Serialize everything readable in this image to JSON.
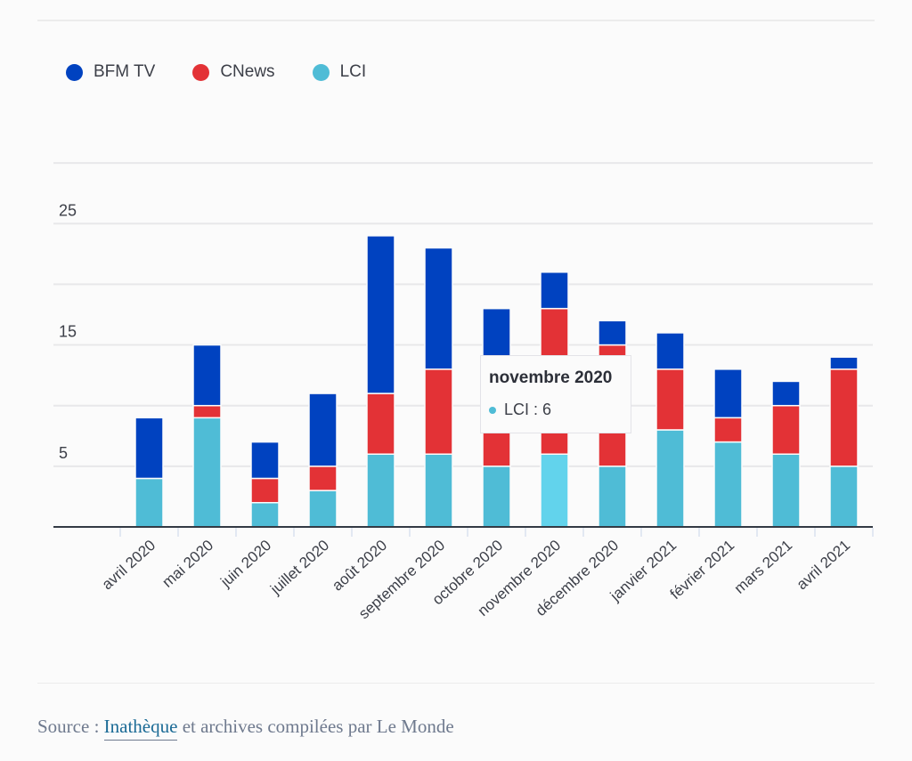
{
  "chart_data": {
    "type": "bar",
    "stacked": true,
    "title": "",
    "xlabel": "",
    "ylabel": "",
    "ylim": [
      0,
      30
    ],
    "yticks_labeled": [
      5,
      15,
      25
    ],
    "ygrid": [
      5,
      10,
      15,
      20,
      25,
      30
    ],
    "grid": true,
    "legend_position": "top-left",
    "categories": [
      "avril 2020",
      "mai 2020",
      "juin 2020",
      "juillet 2020",
      "août 2020",
      "septembre 2020",
      "octobre 2020",
      "novembre 2020",
      "décembre 2020",
      "janvier 2021",
      "février 2021",
      "mars 2021",
      "avril 2021"
    ],
    "series": [
      {
        "name": "LCI",
        "color": "#4fbcd6",
        "values": [
          4,
          9,
          2,
          3,
          6,
          6,
          5,
          6,
          5,
          8,
          7,
          6,
          5
        ]
      },
      {
        "name": "CNews",
        "color": "#e33236",
        "values": [
          0,
          1,
          2,
          2,
          5,
          7,
          8,
          12,
          10,
          5,
          2,
          4,
          8
        ]
      },
      {
        "name": "BFM TV",
        "color": "#0042c0",
        "values": [
          5,
          5,
          3,
          6,
          13,
          10,
          5,
          3,
          2,
          3,
          4,
          2,
          1
        ]
      }
    ],
    "highlight": {
      "category": "novembre 2020",
      "series": "LCI",
      "color": "#62d3ec"
    }
  },
  "legend": [
    {
      "label": "BFM TV",
      "color": "#0042c0"
    },
    {
      "label": "CNews",
      "color": "#e33236"
    },
    {
      "label": "LCI",
      "color": "#4fbcd6"
    }
  ],
  "tooltip": {
    "title": "novembre 2020",
    "series": "LCI",
    "value_text": "LCI : 6",
    "color": "#4fbcd6"
  },
  "source": {
    "prefix": "Source : ",
    "link": "Inathèque",
    "suffix": " et archives compilées par Le Monde"
  }
}
